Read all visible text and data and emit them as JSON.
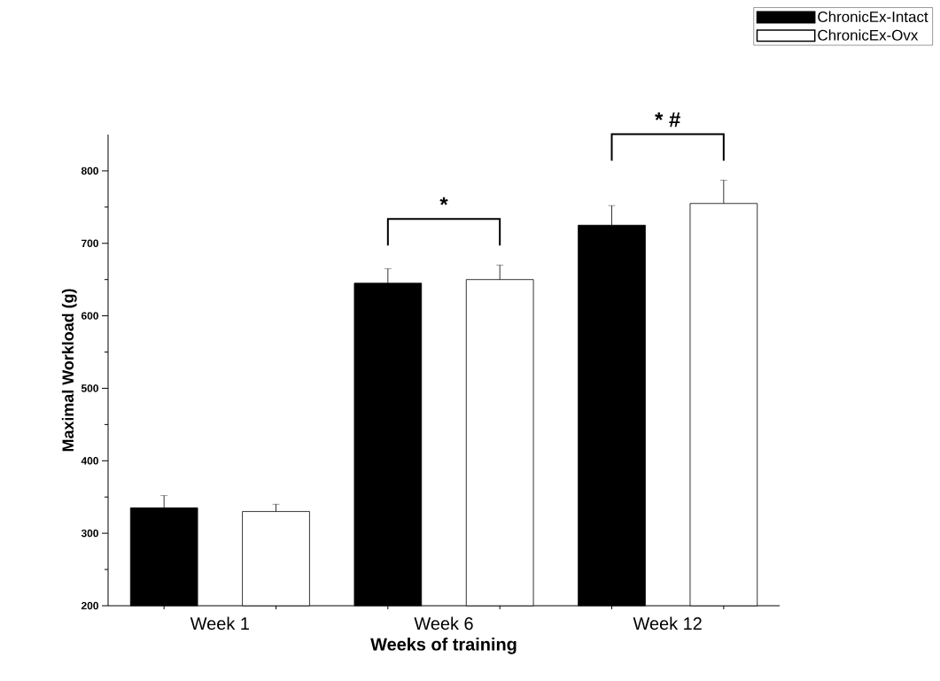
{
  "chart_data": {
    "type": "bar",
    "xlabel": "Weeks of training",
    "ylabel": "Maximal Workload (g)",
    "categories": [
      "Week 1",
      "Week 6",
      "Week 12"
    ],
    "series": [
      {
        "name": "ChronicEx-Intact",
        "color": "#000000",
        "values": [
          335,
          645,
          725
        ],
        "errors": [
          17,
          20,
          27
        ]
      },
      {
        "name": "ChronicEx-Ovx",
        "color": "#ffffff",
        "values": [
          330,
          650,
          755
        ],
        "errors": [
          10,
          20,
          32
        ]
      }
    ],
    "ylim": [
      200,
      850
    ],
    "yticks": [
      200,
      300,
      400,
      500,
      600,
      700,
      800
    ],
    "legend": "top right",
    "annotations": [
      "*",
      "* #"
    ]
  }
}
